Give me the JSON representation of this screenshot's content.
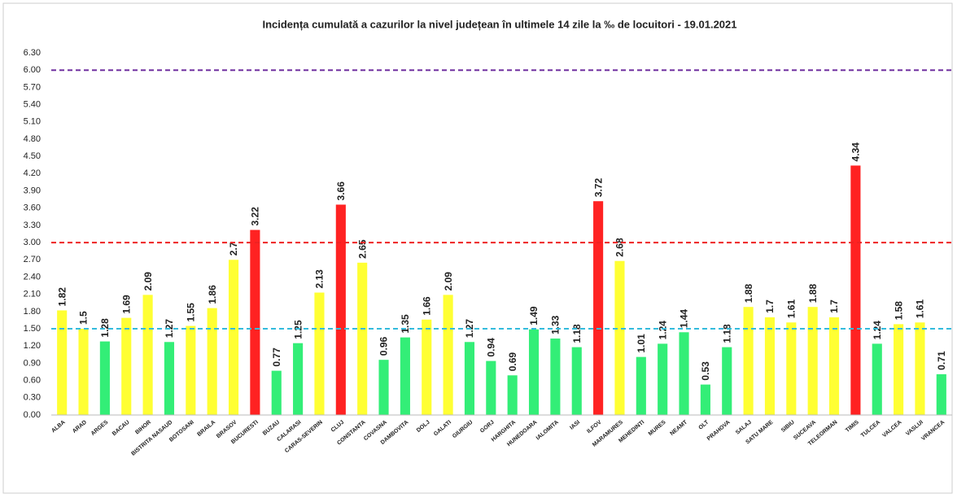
{
  "chart_data": {
    "type": "bar",
    "title": "Incidența cumulată a cazurilor la nivel județean în ultimele 14 zile la ‰ de locuitori - 19.01.2021",
    "categories": [
      "ALBA",
      "ARAD",
      "ARGES",
      "BACAU",
      "BIHOR",
      "BISTRITA NASAUD",
      "BOTOSANI",
      "BRAILA",
      "BRASOV",
      "BUCURESTI",
      "BUZAU",
      "CALARASI",
      "CARAS-SEVERIN",
      "CLUJ",
      "CONSTANTA",
      "COVASNA",
      "DAMBOVITA",
      "DOLJ",
      "GALATI",
      "GIURGIU",
      "GORJ",
      "HARGHITA",
      "HUNEDOARA",
      "IALOMITA",
      "IASI",
      "ILFOV",
      "MARAMURES",
      "MEHEDINTI",
      "MURES",
      "NEAMT",
      "OLT",
      "PRAHOVA",
      "SALAJ",
      "SATU MARE",
      "SIBIU",
      "SUCEAVA",
      "TELEORMAN",
      "TIMIS",
      "TULCEA",
      "VALCEA",
      "VASLUI",
      "VRANCEA"
    ],
    "values": [
      1.82,
      1.5,
      1.28,
      1.69,
      2.09,
      1.27,
      1.55,
      1.86,
      2.7,
      3.22,
      0.77,
      1.25,
      2.13,
      3.66,
      2.65,
      0.96,
      1.35,
      1.66,
      2.09,
      1.27,
      0.94,
      0.69,
      1.49,
      1.33,
      1.18,
      3.72,
      2.68,
      1.01,
      1.24,
      1.44,
      0.53,
      1.18,
      1.88,
      1.7,
      1.61,
      1.88,
      1.7,
      4.34,
      1.24,
      1.58,
      1.61,
      0.71
    ],
    "colors": [
      "#ffff33",
      "#ffff33",
      "#33ee77",
      "#ffff33",
      "#ffff33",
      "#33ee77",
      "#ffff33",
      "#ffff33",
      "#ffff33",
      "#ff2222",
      "#33ee77",
      "#33ee77",
      "#ffff33",
      "#ff2222",
      "#ffff33",
      "#33ee77",
      "#33ee77",
      "#ffff33",
      "#ffff33",
      "#33ee77",
      "#33ee77",
      "#33ee77",
      "#33ee77",
      "#33ee77",
      "#33ee77",
      "#ff2222",
      "#ffff33",
      "#33ee77",
      "#33ee77",
      "#33ee77",
      "#33ee77",
      "#33ee77",
      "#ffff33",
      "#ffff33",
      "#ffff33",
      "#ffff33",
      "#ffff33",
      "#ff2222",
      "#33ee77",
      "#ffff33",
      "#ffff33",
      "#33ee77"
    ],
    "ylim": [
      0,
      6.3
    ],
    "yticks": [
      {
        "value": 0,
        "label": "0.00"
      },
      {
        "value": 0.3,
        "label": "0.30"
      },
      {
        "value": 0.6,
        "label": "0.60"
      },
      {
        "value": 0.9,
        "label": "0.90"
      },
      {
        "value": 1.2,
        "label": "1.20"
      },
      {
        "value": 1.5,
        "label": "1.50"
      },
      {
        "value": 1.8,
        "label": "1.80"
      },
      {
        "value": 2.1,
        "label": "2.10"
      },
      {
        "value": 2.4,
        "label": "2.40"
      },
      {
        "value": 2.7,
        "label": "2.70"
      },
      {
        "value": 3,
        "label": "3.00"
      },
      {
        "value": 3.3,
        "label": "3.30"
      },
      {
        "value": 3.6,
        "label": "3.60"
      },
      {
        "value": 3.9,
        "label": "3.90"
      },
      {
        "value": 4.2,
        "label": "4.20"
      },
      {
        "value": 4.5,
        "label": "4.50"
      },
      {
        "value": 4.8,
        "label": "4.80"
      },
      {
        "value": 5.1,
        "label": "5.10"
      },
      {
        "value": 5.4,
        "label": "5.40"
      },
      {
        "value": 5.7,
        "label": "5.70"
      },
      {
        "value": 6,
        "label": "6.00"
      },
      {
        "value": 6.3,
        "label": "6.30"
      }
    ],
    "reference_lines": [
      {
        "value": 1.5,
        "color": "#33bbdd"
      },
      {
        "value": 3,
        "color": "#ee2222"
      },
      {
        "value": 6,
        "color": "#7030a0"
      }
    ],
    "grid": false
  }
}
